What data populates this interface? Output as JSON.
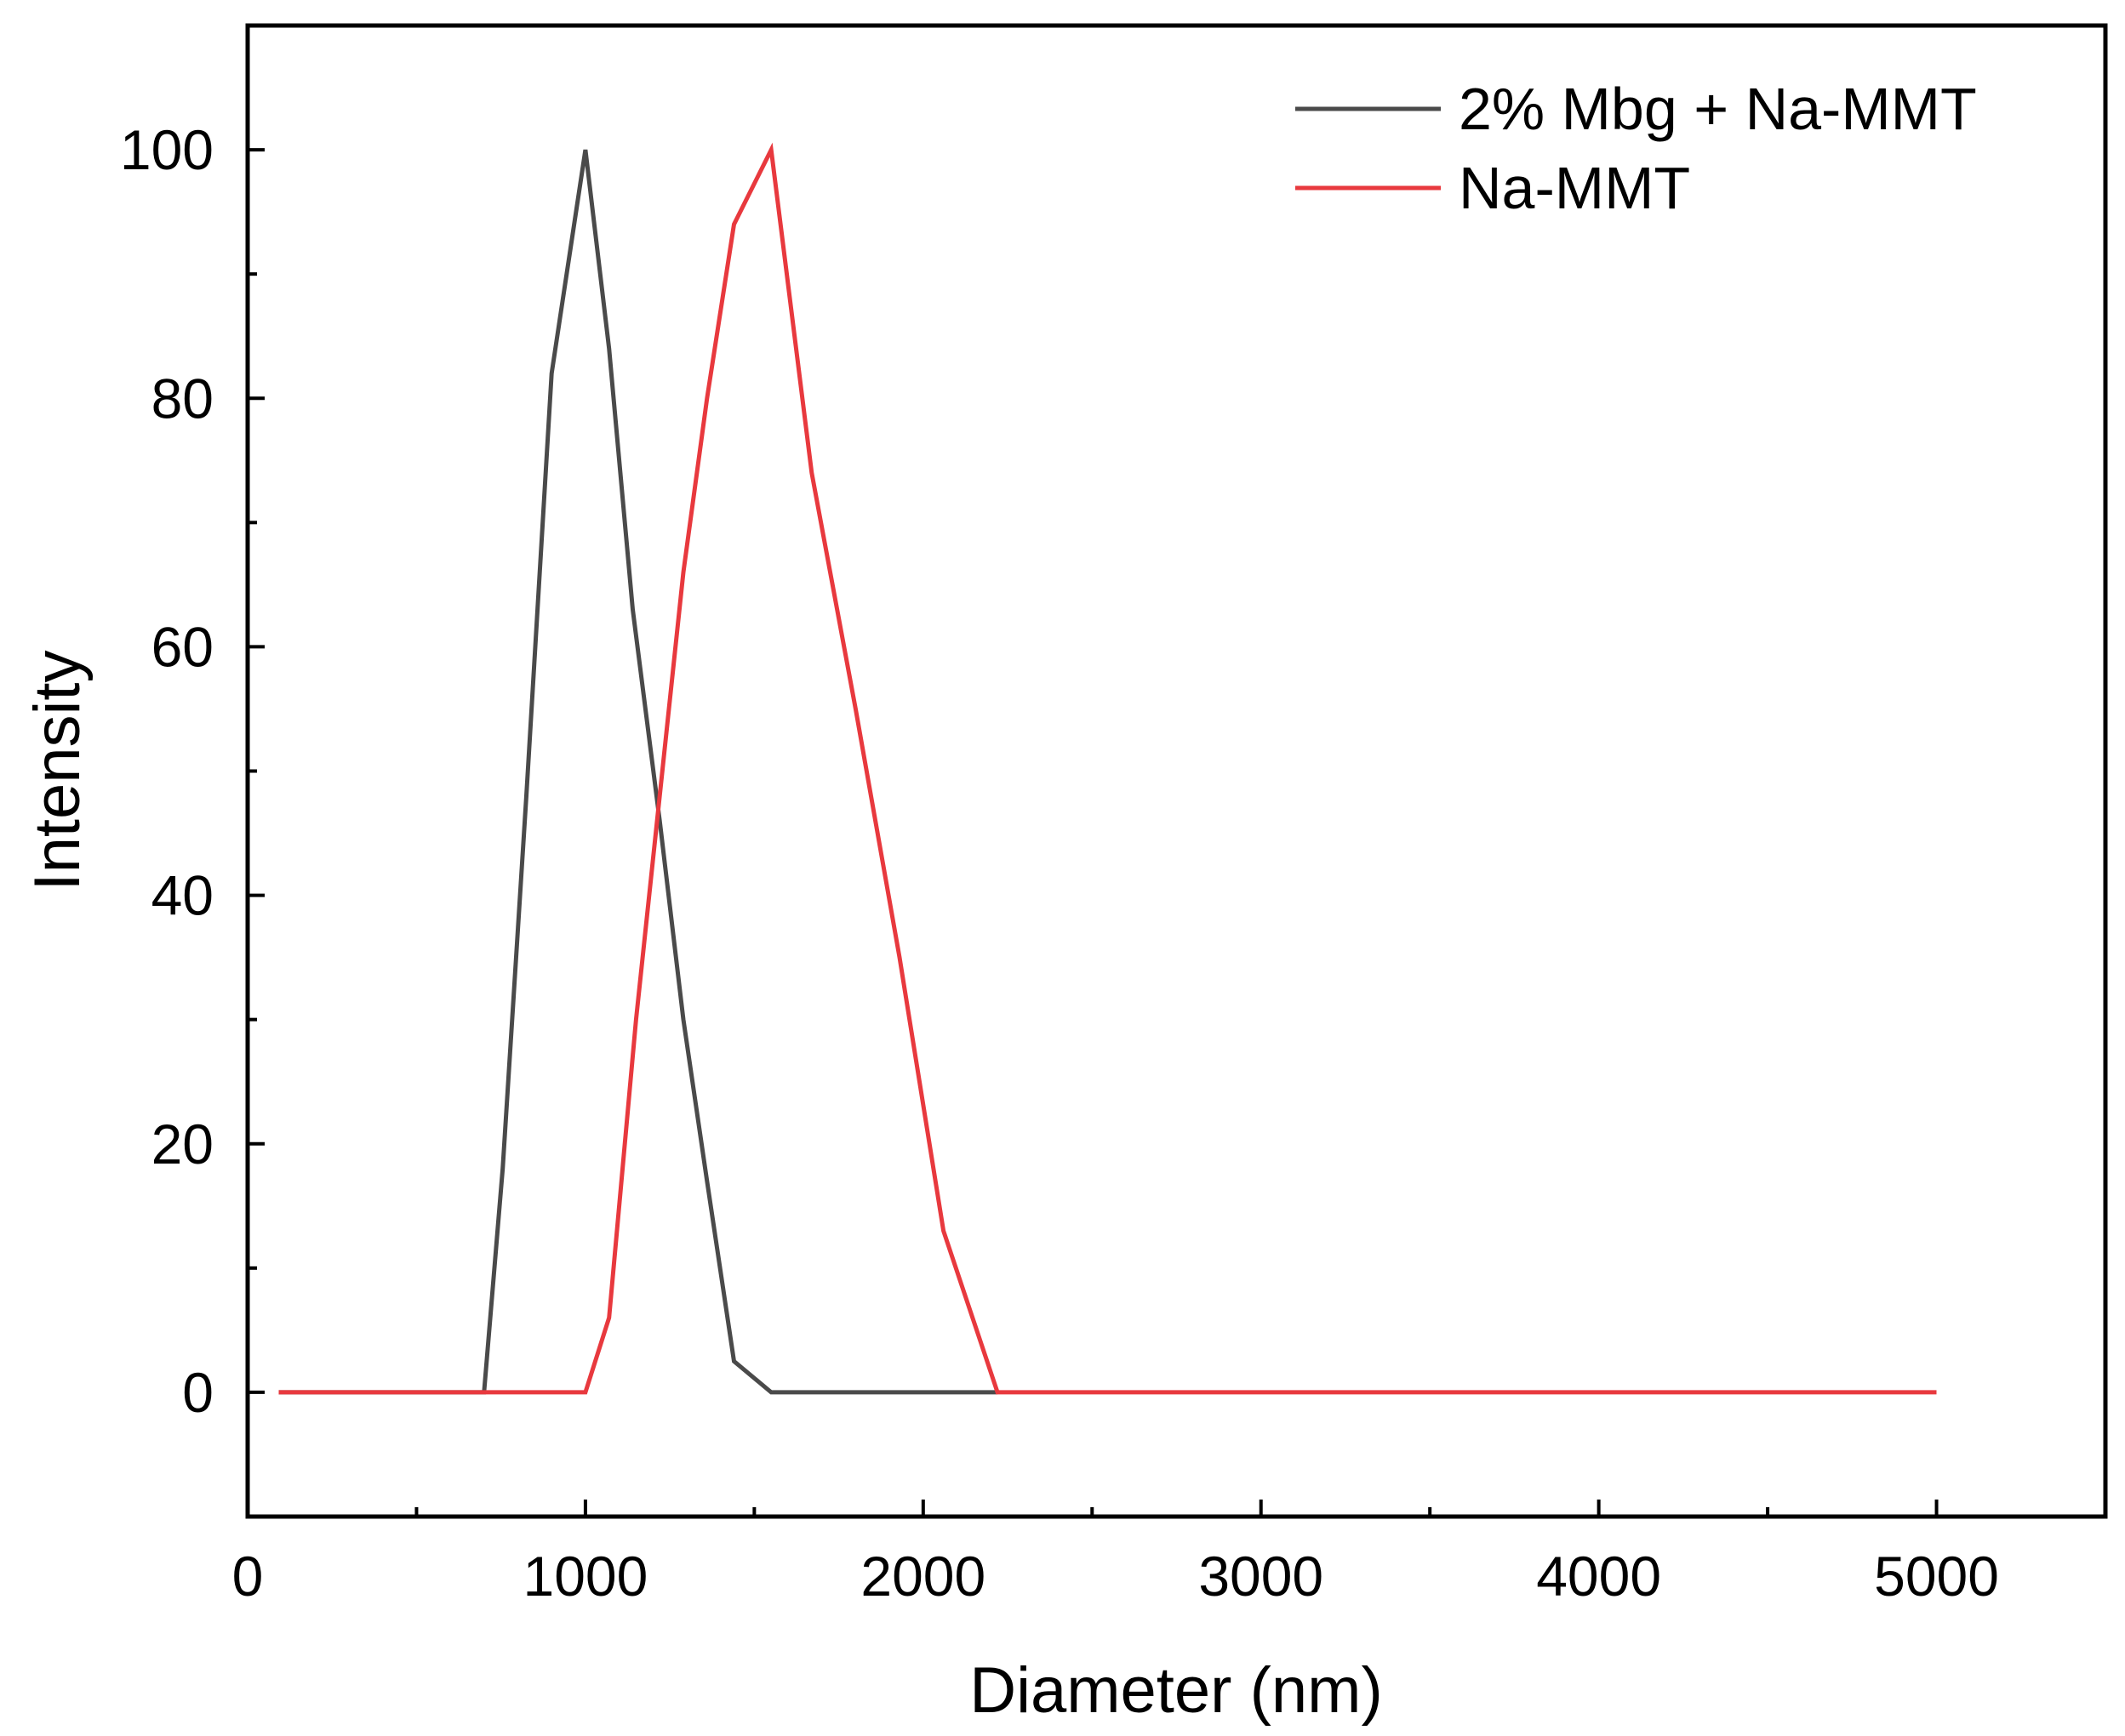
{
  "chart_data": {
    "type": "line",
    "title": "",
    "xlabel": "Diameter (nm)",
    "ylabel": "Intensity",
    "xlim": [
      0,
      5500
    ],
    "ylim": [
      -10,
      110
    ],
    "xticks": [
      0,
      1000,
      2000,
      3000,
      4000,
      5000
    ],
    "xminor": [
      500,
      1500,
      2500,
      3500,
      4500
    ],
    "yticks": [
      0,
      20,
      40,
      60,
      80,
      100
    ],
    "yminor": [
      10,
      30,
      50,
      70,
      90
    ],
    "grid": false,
    "legend_position": "top-right",
    "series": [
      {
        "name": "2% Mbg + Na-MMT",
        "color": "#4a4a4a",
        "points": [
          [
            92,
            0
          ],
          [
            700,
            0
          ],
          [
            755,
            18
          ],
          [
            825,
            48
          ],
          [
            900,
            82
          ],
          [
            1000,
            100
          ],
          [
            1070,
            84
          ],
          [
            1140,
            63
          ],
          [
            1220,
            46
          ],
          [
            1290,
            30
          ],
          [
            1360,
            17
          ],
          [
            1440,
            2.5
          ],
          [
            1550,
            0
          ],
          [
            2220,
            0
          ]
        ]
      },
      {
        "name": "Na-MMT",
        "color": "#e8393e",
        "points": [
          [
            92,
            0
          ],
          [
            1000,
            0
          ],
          [
            1070,
            6
          ],
          [
            1150,
            30
          ],
          [
            1220,
            48
          ],
          [
            1290,
            66
          ],
          [
            1360,
            80
          ],
          [
            1440,
            94
          ],
          [
            1550,
            100
          ],
          [
            1670,
            74
          ],
          [
            1800,
            55
          ],
          [
            1930,
            35
          ],
          [
            2060,
            13
          ],
          [
            2220,
            0
          ],
          [
            5000,
            0
          ]
        ]
      }
    ]
  }
}
